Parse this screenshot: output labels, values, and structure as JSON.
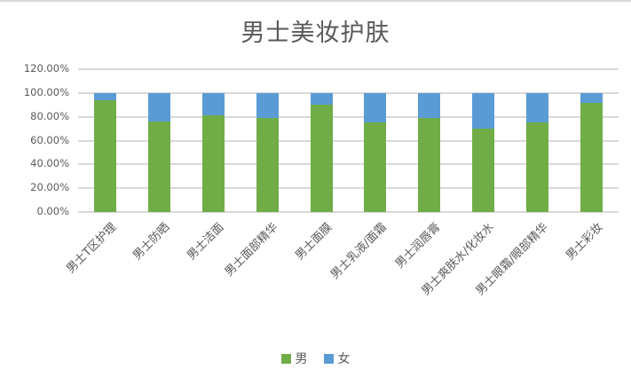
{
  "title": "男士美妆护肤",
  "colors": {
    "male_green": "#70ad47",
    "female_blue": "#5b9bd5",
    "gridline": "#d9d9d9",
    "text": "#595959"
  },
  "legend": {
    "items": [
      {
        "label": "男",
        "color": "#70ad47"
      },
      {
        "label": "女",
        "color": "#5b9bd5"
      }
    ]
  },
  "chart_data": {
    "type": "bar",
    "subtype": "stacked-100-percent",
    "title": "男士美妆护肤",
    "xlabel": "",
    "ylabel": "",
    "categories": [
      "男士T区护理",
      "男士防晒",
      "男士洁面",
      "男士面部精华",
      "男士面膜",
      "男士乳液/面霜",
      "男士润唇膏",
      "男士爽肤水/化妆水",
      "男士眼霜/眼部精华",
      "男士彩妆"
    ],
    "series": [
      {
        "name": "男",
        "color": "#70ad47",
        "values": [
          94,
          76,
          81,
          79,
          90,
          75,
          79,
          70,
          75,
          92
        ]
      },
      {
        "name": "女",
        "color": "#5b9bd5",
        "values": [
          6,
          24,
          19,
          21,
          10,
          25,
          21,
          30,
          25,
          8
        ]
      }
    ],
    "value_unit": "percent",
    "ylim": [
      0,
      120
    ],
    "ytick_step": 20,
    "yticks": [
      "0.00%",
      "20.00%",
      "40.00%",
      "60.00%",
      "80.00%",
      "100.00%",
      "120.00%"
    ],
    "grid": true,
    "legend_position": "bottom"
  }
}
